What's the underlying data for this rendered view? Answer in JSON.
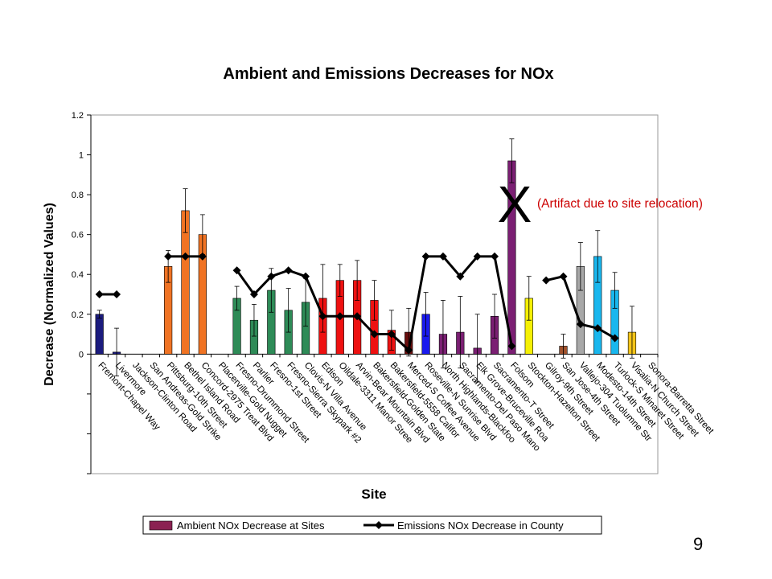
{
  "slide": {
    "page_number": "9"
  },
  "annotation": {
    "mark": "X",
    "text": "(Artifact due to site relocation)"
  },
  "chart_data": {
    "type": "bar",
    "title": "Ambient and Emissions Decreases for NOx",
    "xlabel": "Site",
    "ylabel": "Decrease (Normalized Values)",
    "ylim": [
      -0.6,
      1.2
    ],
    "y_ticks": [
      "1.2",
      "1",
      "0.8",
      "0.6",
      "0.4",
      "0.2",
      "0"
    ],
    "grid": false,
    "legend_position": "bottom",
    "categories": [
      "Fremont-Chapel Way",
      "Livermore",
      "Jackson-Clinton Road",
      "San Andreas-Gold Strike",
      "Pittsburg-10th Street",
      "Bethel Island Road",
      "Concord-2975 Treat Blvd",
      "Placerville-Gold Nugget",
      "Fresno-Drummond Street",
      "Parlier",
      "Fresno-1st Street",
      "Fresno-Sierra Skypark #2",
      "Clovis-N Villa Avenue",
      "Edison",
      "Oildale-3311 Manor Stree",
      "Arvin-Bear Mountain Blvd",
      "Bakersfield-Golden State",
      "Bakersfield-5558 Califor",
      "Merced-S Coffee Avenue",
      "Roseville-N Sunrise Blvd",
      "North Highlands-Blackfoo",
      "Sacramento-Del Paso Mano",
      "Elk Grove-Bruceville Roa",
      "Sacramento-T Street",
      "Folsom",
      "Stockton-Hazelton Street",
      "Gilroy-9th Street",
      "San Jose-4th Street",
      "Vallejo-304 Tuolumne Str",
      "Modesto-14th Street",
      "Turlock-S Minaret Street",
      "Visalia-N Church Street",
      "Sonora-Barretta Street"
    ],
    "series": [
      {
        "name": "Ambient NOx Decrease at Sites",
        "kind": "bar",
        "values": [
          0.2,
          0.01,
          null,
          null,
          0.44,
          0.72,
          0.6,
          null,
          0.28,
          0.17,
          0.32,
          0.22,
          0.26,
          0.28,
          0.37,
          0.37,
          0.27,
          0.12,
          0.11,
          0.2,
          0.1,
          0.11,
          0.03,
          0.19,
          0.97,
          0.28,
          null,
          0.04,
          0.44,
          0.49,
          0.32,
          0.11,
          null
        ],
        "error": [
          0.02,
          0.12,
          null,
          null,
          0.08,
          0.11,
          0.1,
          null,
          0.06,
          0.08,
          0.11,
          0.11,
          0.12,
          0.17,
          0.08,
          0.1,
          0.1,
          0.1,
          0.12,
          0.11,
          0.17,
          0.18,
          0.17,
          0.11,
          0.11,
          0.11,
          null,
          0.06,
          0.12,
          0.13,
          0.09,
          0.13,
          null
        ]
      },
      {
        "name": "Emissions NOx Decrease in County",
        "kind": "line",
        "segments": [
          [
            [
              0,
              0.3
            ],
            [
              1,
              0.3
            ]
          ],
          [
            [
              4,
              0.49
            ],
            [
              5,
              0.49
            ],
            [
              6,
              0.49
            ]
          ],
          [
            [
              8,
              0.42
            ],
            [
              9,
              0.3
            ],
            [
              10,
              0.39
            ],
            [
              11,
              0.42
            ],
            [
              12,
              0.39
            ],
            [
              13,
              0.19
            ],
            [
              14,
              0.19
            ],
            [
              15,
              0.19
            ],
            [
              16,
              0.1
            ],
            [
              17,
              0.1
            ],
            [
              18,
              0.02
            ],
            [
              19,
              0.49
            ],
            [
              20,
              0.49
            ],
            [
              21,
              0.39
            ],
            [
              22,
              0.49
            ],
            [
              23,
              0.49
            ],
            [
              24,
              0.04
            ]
          ],
          [
            [
              26,
              0.37
            ],
            [
              27,
              0.39
            ],
            [
              28,
              0.15
            ],
            [
              29,
              0.13
            ],
            [
              30,
              0.08
            ]
          ]
        ]
      }
    ],
    "colors": {
      "bars": [
        "#1c1c7e",
        "#1c1c7e",
        "#1c1c7e",
        "#1c1c7e",
        "#f07323",
        "#f07323",
        "#f07323",
        "#f07323",
        "#2e8b57",
        "#2e8b57",
        "#2e8b57",
        "#2e8b57",
        "#2e8b57",
        "#ee1111",
        "#ee1111",
        "#ee1111",
        "#ee1111",
        "#ee1111",
        "#6b0f0f",
        "#1a1aee",
        "#7b1f73",
        "#7b1f73",
        "#7b1f73",
        "#7b1f73",
        "#7b1f73",
        "#f5f005",
        "#a0522d",
        "#a0522d",
        "#a8a8a8",
        "#19b7ee",
        "#19b7ee",
        "#f5c518",
        "#f5c518"
      ],
      "legend_swatch": "#8b2252",
      "line": "#000000",
      "annotation": "#cc0000"
    }
  }
}
